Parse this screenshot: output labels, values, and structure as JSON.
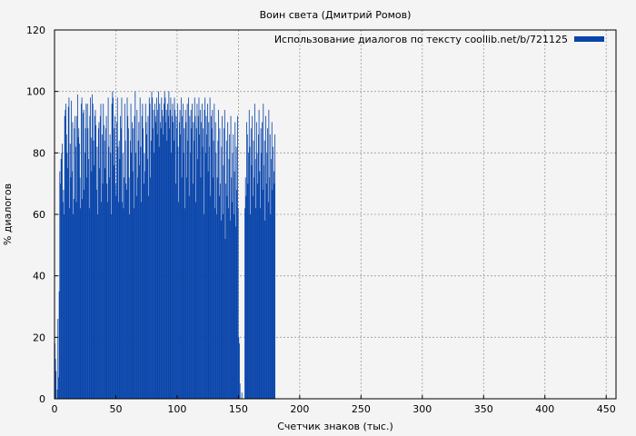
{
  "chart_data": {
    "type": "bar",
    "title": "Воин света (Дмитрий Ромов)",
    "xlabel": "Счетчик знаков (тыс.)",
    "ylabel": "% диалогов",
    "xlim": [
      0,
      458
    ],
    "ylim": [
      0,
      120
    ],
    "xticks": [
      "0",
      "50",
      "100",
      "150",
      "200",
      "250",
      "300",
      "350",
      "400",
      "450"
    ],
    "yticks": [
      "0",
      "20",
      "40",
      "60",
      "80",
      "100",
      "120"
    ],
    "grid": true,
    "legend_position": "top-right",
    "series": [
      {
        "name": "Использование диалогов по тексту coollib.net/b/721125",
        "color": "#0844aa",
        "x_step": 0.5,
        "values": [
          18,
          13,
          9,
          0,
          3,
          26,
          7,
          35,
          74,
          70,
          78,
          80,
          83,
          64,
          68,
          60,
          92,
          94,
          96,
          86,
          80,
          75,
          95,
          98,
          62,
          83,
          72,
          97,
          74,
          90,
          60,
          65,
          88,
          92,
          82,
          64,
          92,
          99,
          85,
          88,
          83,
          72,
          62,
          96,
          98,
          65,
          93,
          94,
          68,
          80,
          88,
          96,
          72,
          96,
          88,
          78,
          62,
          92,
          98,
          85,
          74,
          99,
          96,
          84,
          76,
          92,
          94,
          89,
          68,
          82,
          60,
          88,
          90,
          75,
          92,
          96,
          64,
          86,
          70,
          96,
          89,
          84,
          75,
          88,
          92,
          70,
          64,
          98,
          82,
          72,
          86,
          80,
          60,
          96,
          100,
          98,
          76,
          88,
          92,
          70,
          66,
          90,
          98,
          82,
          64,
          84,
          78,
          92,
          88,
          98,
          64,
          80,
          62,
          72,
          96,
          84,
          70,
          68,
          98,
          92,
          88,
          72,
          60,
          84,
          96,
          80,
          90,
          74,
          88,
          62,
          92,
          100,
          80,
          66,
          94,
          72,
          84,
          90,
          76,
          98,
          82,
          64,
          92,
          96,
          88,
          70,
          80,
          74,
          96,
          90,
          86,
          78,
          92,
          66,
          98,
          96,
          72,
          84,
          100,
          98,
          88,
          94,
          80,
          96,
          92,
          90,
          98,
          86,
          94,
          100,
          82,
          96,
          90,
          88,
          98,
          94,
          92,
          86,
          96,
          100,
          98,
          90,
          94,
          84,
          96,
          92,
          100,
          88,
          94,
          98,
          80,
          92,
          96,
          90,
          84,
          98,
          94,
          70,
          92,
          88,
          96,
          82,
          64,
          90,
          94,
          86,
          98,
          72,
          92,
          96,
          80,
          88,
          62,
          94,
          90,
          72,
          96,
          84,
          98,
          66,
          92,
          80,
          94,
          88,
          96,
          70,
          90,
          84,
          98,
          92,
          64,
          88,
          96,
          78,
          92,
          98,
          86,
          94,
          72,
          90,
          96,
          82,
          88,
          60,
          94,
          98,
          80,
          92,
          86,
          96,
          74,
          90,
          82,
          98,
          66,
          92,
          88,
          94,
          72,
          84,
          96,
          62,
          90,
          80,
          60,
          72,
          84,
          94,
          66,
          88,
          70,
          58,
          82,
          92,
          60,
          76,
          88,
          94,
          52,
          70,
          84,
          66,
          90,
          62,
          78,
          86,
          58,
          92,
          72,
          64,
          80,
          86,
          60,
          74,
          90,
          56,
          82,
          68,
          92,
          62,
          20,
          18,
          5,
          0,
          0,
          2,
          0,
          0,
          0,
          0,
          62,
          72,
          66,
          90,
          86,
          70,
          80,
          94,
          82,
          60,
          88,
          76,
          92,
          66,
          84,
          72,
          96,
          78,
          62,
          90,
          80,
          70,
          86,
          94,
          74,
          62,
          88,
          80,
          90,
          68,
          96,
          76,
          84,
          58,
          92,
          70,
          80,
          88,
          64,
          94,
          72,
          86,
          60,
          78,
          90,
          68,
          82,
          74,
          70,
          86
        ]
      }
    ]
  }
}
